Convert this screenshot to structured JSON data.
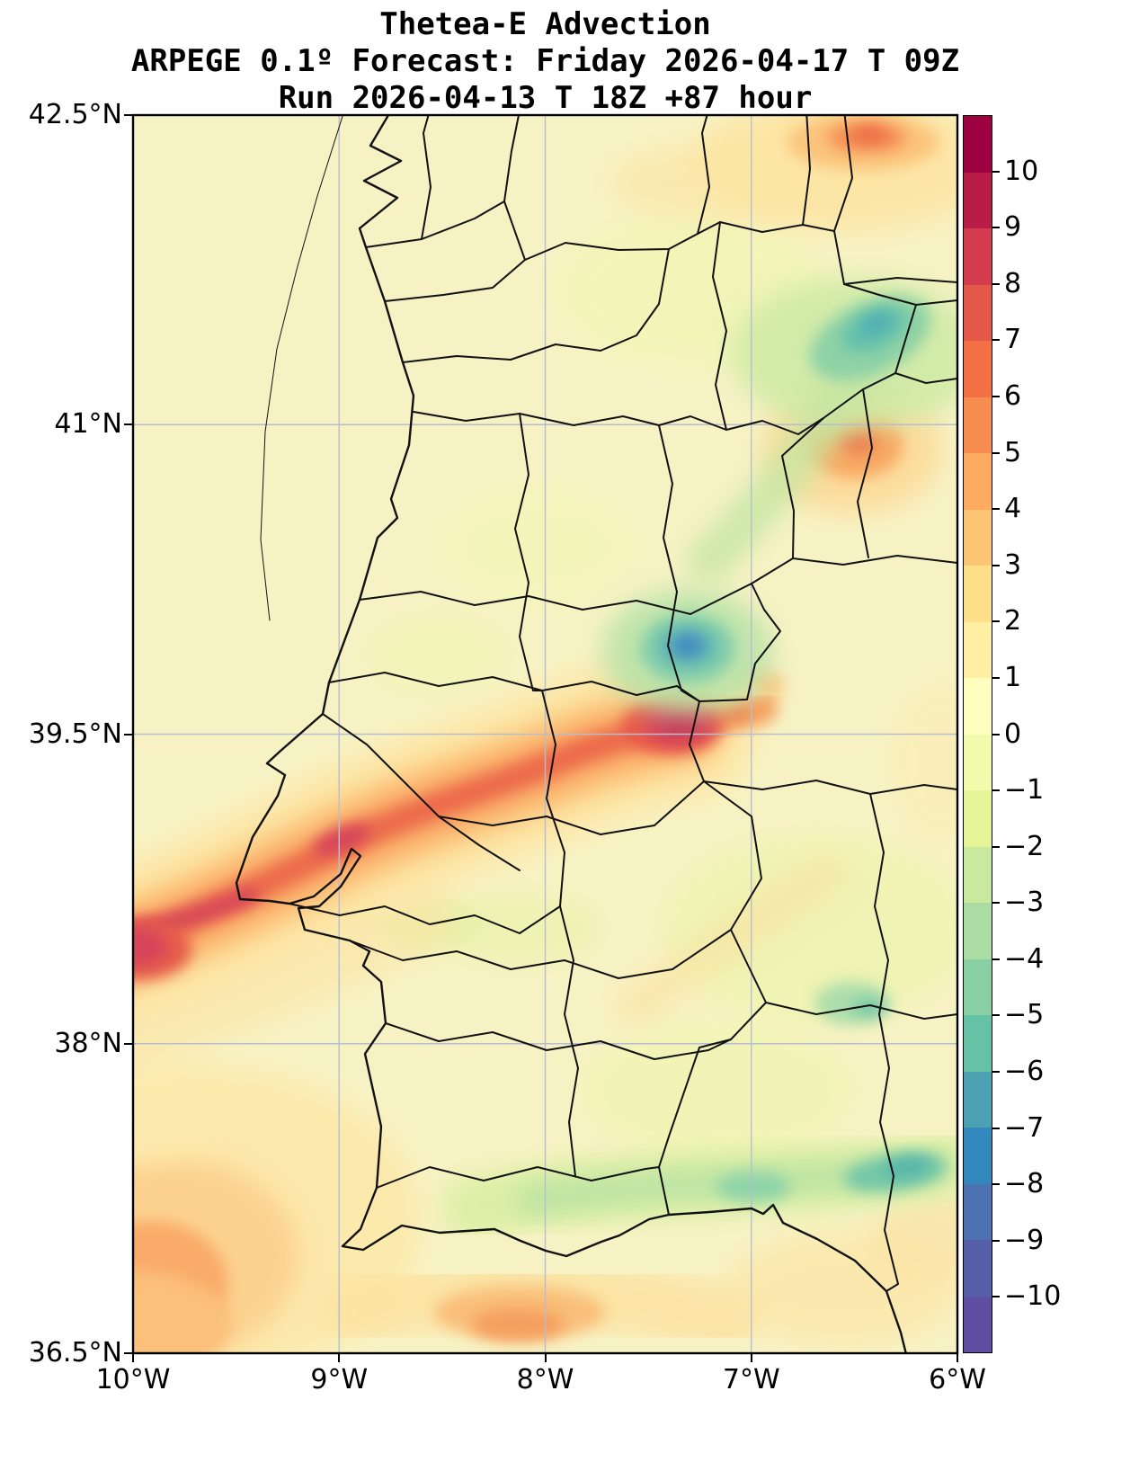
{
  "title": {
    "line1": "Thetea-E Advection",
    "line2": "ARPEGE 0.1º Forecast: Friday 2026-04-17 T 09Z",
    "line3": "Run 2026-04-13 T 18Z +87 hour"
  },
  "axes": {
    "y_ticks": [
      "42.5°N",
      "41°N",
      "39.5°N",
      "38°N",
      "36.5°N"
    ],
    "x_ticks": [
      "10°W",
      "9°W",
      "8°W",
      "7°W",
      "6°W"
    ]
  },
  "colorbar": {
    "tick_labels": [
      "10",
      "9",
      "8",
      "7",
      "6",
      "5",
      "4",
      "3",
      "2",
      "1",
      "0",
      "−1",
      "−2",
      "−3",
      "−4",
      "−5",
      "−6",
      "−7",
      "−8",
      "−9",
      "−10"
    ],
    "segments_top_to_bottom": [
      "#9e0142",
      "#b81d47",
      "#d33c4e",
      "#e45849",
      "#f37044",
      "#f88d51",
      "#fcab60",
      "#fdc675",
      "#fedf8a",
      "#feefa4",
      "#fefebe",
      "#f2faab",
      "#e5f598",
      "#c8e99e",
      "#aadca4",
      "#88d0a4",
      "#66c2a5",
      "#4ba0b2",
      "#3288bd",
      "#4d72b2",
      "#5660a8",
      "#5e4fa2"
    ]
  },
  "chart_data": {
    "type": "heatmap",
    "title": "Thetea-E Advection",
    "subtitle": "ARPEGE 0.1º Forecast: Friday 2026-04-17 T 09Z",
    "run_line": "Run 2026-04-13 T 18Z +87 hour",
    "x_axis": {
      "ticks_deg_west": [
        10,
        9,
        8,
        7,
        6
      ],
      "range_deg_west": [
        10,
        6
      ],
      "tick_labels": [
        "10°W",
        "9°W",
        "8°W",
        "7°W",
        "6°W"
      ]
    },
    "y_axis": {
      "ticks_deg_north": [
        42.5,
        41,
        39.5,
        38,
        36.5
      ],
      "range_deg_north": [
        42.5,
        36.5
      ],
      "tick_labels": [
        "42.5°N",
        "41°N",
        "39.5°N",
        "38°N",
        "36.5°N"
      ]
    },
    "grid": true,
    "gridline_color": "#b7bdd0",
    "background_field_value": 0.5,
    "colorbar": {
      "vmin": -11,
      "vmax": 11,
      "tick_values": [
        10,
        9,
        8,
        7,
        6,
        5,
        4,
        3,
        2,
        1,
        0,
        -1,
        -2,
        -3,
        -4,
        -5,
        -6,
        -7,
        -8,
        -9,
        -10
      ],
      "orientation": "vertical",
      "position": "right"
    },
    "features": [
      {
        "name": "warm advection band",
        "path_lonlat": [
          [
            -10.2,
            38.45
          ],
          [
            -9.0,
            39.0
          ],
          [
            -8.4,
            39.35
          ],
          [
            -7.35,
            39.55
          ]
        ],
        "peak_value": 8
      },
      {
        "name": "warm band core blob",
        "lon": -7.35,
        "lat": 39.55,
        "value": 8
      },
      {
        "name": "warm band core left edge",
        "lon": -10.0,
        "lat": 38.45,
        "value": 7
      },
      {
        "name": "cold pocket center",
        "lon": -7.3,
        "lat": 39.9,
        "value": -7
      },
      {
        "name": "cold area northeast",
        "lon": -6.4,
        "lat": 41.45,
        "value": -6
      },
      {
        "name": "warm spot east",
        "lon": -6.5,
        "lat": 40.9,
        "value": 4
      },
      {
        "name": "warm spot northeast corner",
        "lon": -6.45,
        "lat": 42.4,
        "value": 5
      },
      {
        "name": "cool band south",
        "lat": 37.3,
        "lon_range": [
          -8.3,
          -6.0
        ],
        "value": -5
      },
      {
        "name": "cool spot southeast",
        "lon": -6.5,
        "lat": 38.2,
        "value": -2
      },
      {
        "name": "warm area southwest corner",
        "lon": -9.9,
        "lat": 36.9,
        "value": 4
      },
      {
        "name": "warm patch bottom center",
        "lon": -8.1,
        "lat": 36.7,
        "value": 3
      },
      {
        "name": "background field",
        "value": 0.5
      }
    ]
  }
}
